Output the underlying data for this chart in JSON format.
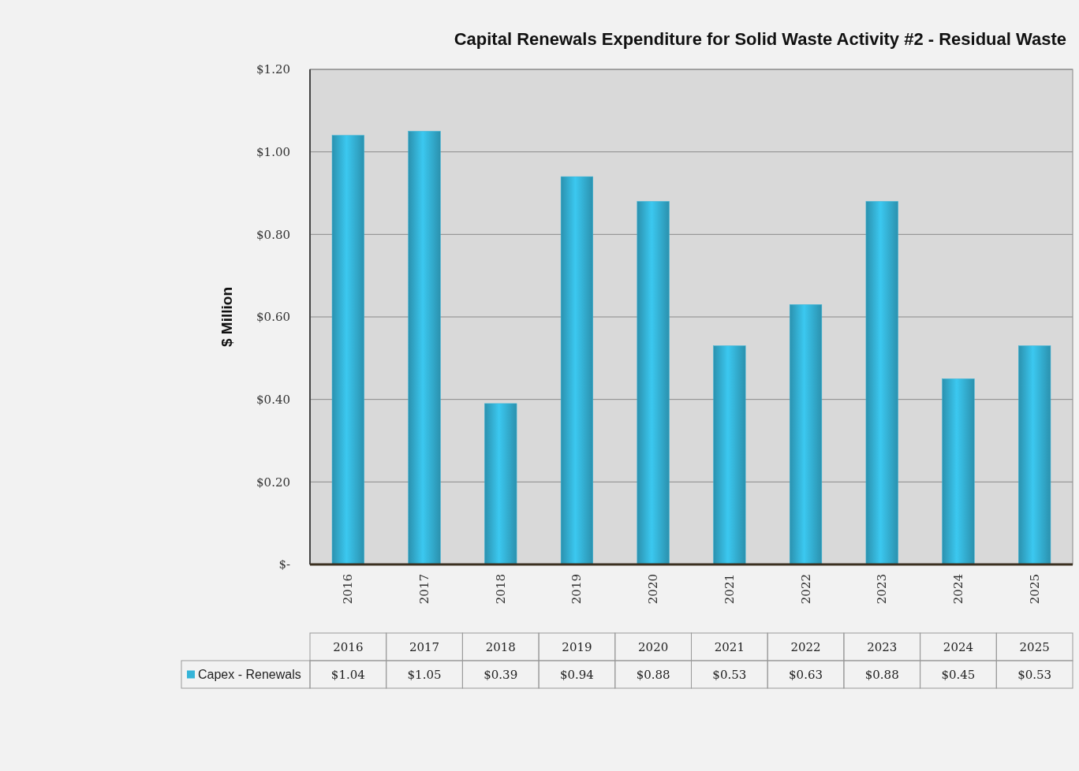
{
  "chart_data": {
    "type": "bar",
    "title": "Capital Renewals Expenditure for Solid Waste Activity #2 - Residual Waste",
    "ylabel": "$ Million",
    "categories": [
      "2016",
      "2017",
      "2018",
      "2019",
      "2020",
      "2021",
      "2022",
      "2023",
      "2024",
      "2025"
    ],
    "series": [
      {
        "name": "Capex - Renewals",
        "color": "#35b4d8",
        "values": [
          1.04,
          1.05,
          0.39,
          0.94,
          0.88,
          0.53,
          0.63,
          0.88,
          0.45,
          0.53
        ],
        "value_labels": [
          "$1.04",
          "$1.05",
          "$0.39",
          "$0.94",
          "$0.88",
          "$0.53",
          "$0.63",
          "$0.88",
          "$0.45",
          "$0.53"
        ]
      }
    ],
    "ylim": [
      0,
      1.2
    ],
    "yticks": [
      {
        "value": 0,
        "label": "$-"
      },
      {
        "value": 0.2,
        "label": "$0.20"
      },
      {
        "value": 0.4,
        "label": "$0.40"
      },
      {
        "value": 0.6,
        "label": "$0.60"
      },
      {
        "value": 0.8,
        "label": "$0.80"
      },
      {
        "value": 1.0,
        "label": "$1.00"
      },
      {
        "value": 1.2,
        "label": "$1.20"
      }
    ],
    "grid": "y",
    "legend": "bottom"
  }
}
